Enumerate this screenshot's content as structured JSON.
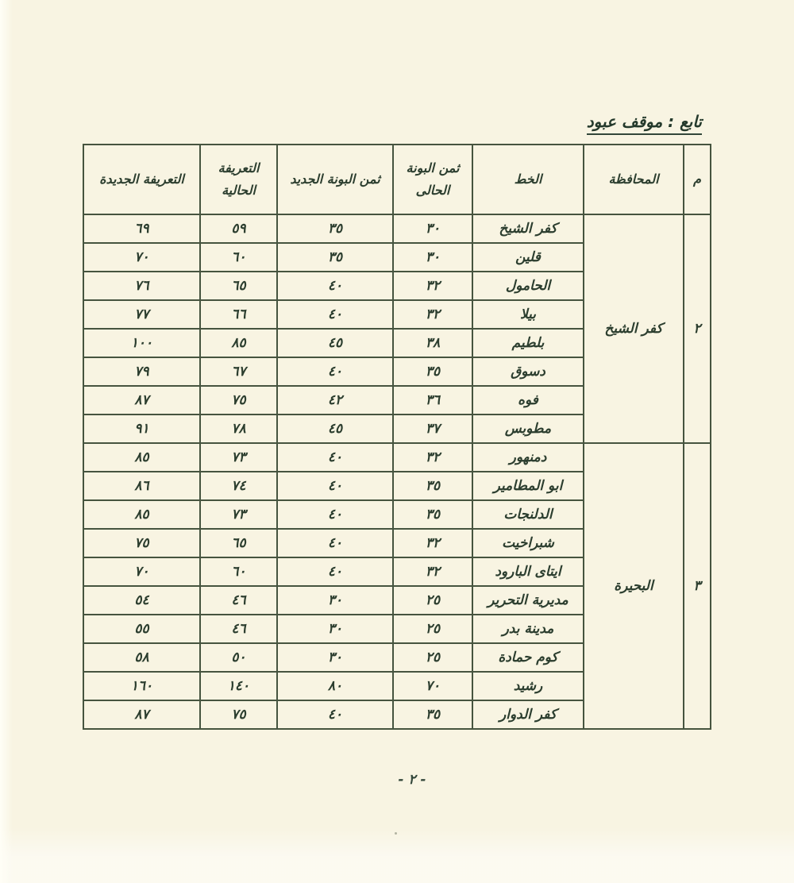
{
  "page": {
    "title": "تابع : موقف عبود",
    "page_number": "- ٢ -"
  },
  "colors": {
    "paper": "#f8f4e2",
    "ink": "#2c3e2f",
    "table_line": "#46543f"
  },
  "table": {
    "headers": [
      "م",
      "المحافظة",
      "الخط",
      "ثمن البونة الحالى",
      "ثمن البونة الجديد",
      "التعريفة الحالية",
      "التعريفة الجديدة"
    ],
    "sections": [
      {
        "number": "٢",
        "governorate": "كفر الشيخ",
        "rows": [
          {
            "line": "كفر الشيخ",
            "coupon_current": "٣٠",
            "coupon_new": "٣٥",
            "tariff_current": "٥٩",
            "tariff_new": "٦٩"
          },
          {
            "line": "قلين",
            "coupon_current": "٣٠",
            "coupon_new": "٣٥",
            "tariff_current": "٦٠",
            "tariff_new": "٧٠"
          },
          {
            "line": "الحامول",
            "coupon_current": "٣٢",
            "coupon_new": "٤٠",
            "tariff_current": "٦٥",
            "tariff_new": "٧٦"
          },
          {
            "line": "بيلا",
            "coupon_current": "٣٢",
            "coupon_new": "٤٠",
            "tariff_current": "٦٦",
            "tariff_new": "٧٧"
          },
          {
            "line": "بلطيم",
            "coupon_current": "٣٨",
            "coupon_new": "٤٥",
            "tariff_current": "٨٥",
            "tariff_new": "١٠٠"
          },
          {
            "line": "دسوق",
            "coupon_current": "٣٥",
            "coupon_new": "٤٠",
            "tariff_current": "٦٧",
            "tariff_new": "٧٩"
          },
          {
            "line": "فوه",
            "coupon_current": "٣٦",
            "coupon_new": "٤٢",
            "tariff_current": "٧٥",
            "tariff_new": "٨٧"
          },
          {
            "line": "مطوبس",
            "coupon_current": "٣٧",
            "coupon_new": "٤٥",
            "tariff_current": "٧٨",
            "tariff_new": "٩١"
          }
        ]
      },
      {
        "number": "٣",
        "governorate": "البحيرة",
        "rows": [
          {
            "line": "دمنهور",
            "coupon_current": "٣٢",
            "coupon_new": "٤٠",
            "tariff_current": "٧٣",
            "tariff_new": "٨٥"
          },
          {
            "line": "ابو المطامير",
            "coupon_current": "٣٥",
            "coupon_new": "٤٠",
            "tariff_current": "٧٤",
            "tariff_new": "٨٦"
          },
          {
            "line": "الدلنجات",
            "coupon_current": "٣٥",
            "coupon_new": "٤٠",
            "tariff_current": "٧٣",
            "tariff_new": "٨٥"
          },
          {
            "line": "شبراخيت",
            "coupon_current": "٣٢",
            "coupon_new": "٤٠",
            "tariff_current": "٦٥",
            "tariff_new": "٧٥"
          },
          {
            "line": "ايتاى البارود",
            "coupon_current": "٣٢",
            "coupon_new": "٤٠",
            "tariff_current": "٦٠",
            "tariff_new": "٧٠"
          },
          {
            "line": "مديرية التحرير",
            "coupon_current": "٢٥",
            "coupon_new": "٣٠",
            "tariff_current": "٤٦",
            "tariff_new": "٥٤"
          },
          {
            "line": "مدينة بدر",
            "coupon_current": "٢٥",
            "coupon_new": "٣٠",
            "tariff_current": "٤٦",
            "tariff_new": "٥٥"
          },
          {
            "line": "كوم حمادة",
            "coupon_current": "٢٥",
            "coupon_new": "٣٠",
            "tariff_current": "٥٠",
            "tariff_new": "٥٨"
          },
          {
            "line": "رشيد",
            "coupon_current": "٧٠",
            "coupon_new": "٨٠",
            "tariff_current": "١٤٠",
            "tariff_new": "١٦٠"
          },
          {
            "line": "كفر الدوار",
            "coupon_current": "٣٥",
            "coupon_new": "٤٠",
            "tariff_current": "٧٥",
            "tariff_new": "٨٧"
          }
        ]
      }
    ]
  }
}
